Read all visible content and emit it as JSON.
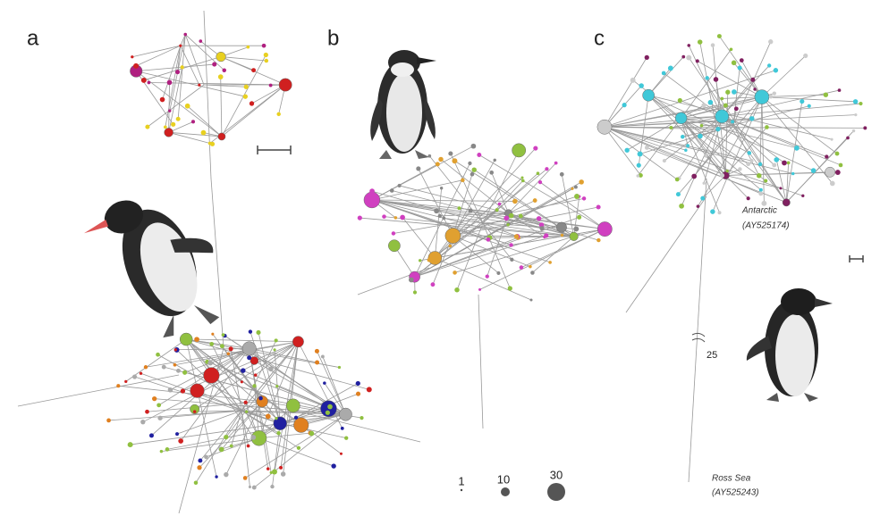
{
  "panels": [
    {
      "label": "a"
    },
    {
      "label": "b",
      "legend": {
        "sizes": [
          "1",
          "10",
          "30"
        ]
      }
    },
    {
      "label": "c",
      "annotations": {
        "antarctic": [
          "Antarctic",
          "(AY525174)"
        ],
        "ross_sea": [
          "Ross Sea",
          "(AY525243)"
        ],
        "break": "25"
      }
    }
  ]
}
